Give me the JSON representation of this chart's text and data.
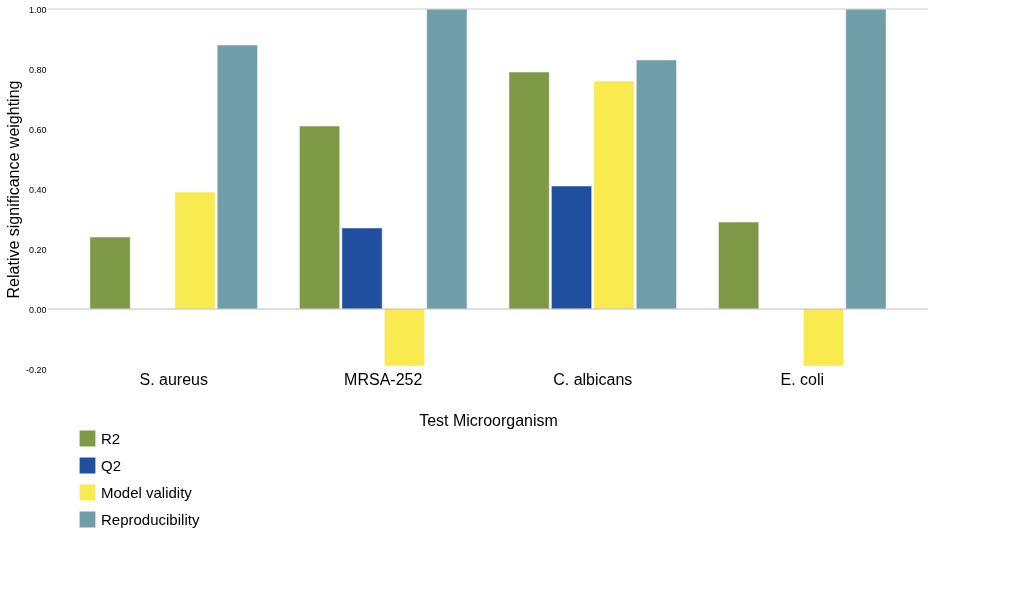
{
  "chart_data": {
    "type": "bar",
    "xlabel": "Test Microorganism",
    "ylabel": "Relative significance weighting",
    "categories": [
      "S. aureus",
      "MRSA-252",
      "C. albicans",
      "E. coli"
    ],
    "series": [
      {
        "name": "R2",
        "color": "#7f9a47",
        "values": [
          0.24,
          0.61,
          0.79,
          0.29
        ]
      },
      {
        "name": "Q2",
        "color": "#1f4f9e",
        "values": [
          null,
          0.27,
          0.41,
          null
        ]
      },
      {
        "name": "Model validity",
        "color": "#f8ea4f",
        "values": [
          0.39,
          -0.19,
          0.76,
          -0.19
        ]
      },
      {
        "name": "Reproducibility",
        "color": "#6f9da8",
        "values": [
          0.88,
          1.0,
          0.83,
          1.0
        ]
      }
    ],
    "ylim": [
      -0.2,
      1.0
    ],
    "yticks": [
      {
        "value": -0.2,
        "label": "-0.20"
      },
      {
        "value": 0,
        "label": "0.00"
      },
      {
        "value": 0.2,
        "label": "0.20"
      },
      {
        "value": 0.4,
        "label": "0.40"
      },
      {
        "value": 0.6,
        "label": "0.60"
      },
      {
        "value": 0.8,
        "label": "0.80"
      },
      {
        "value": 1.0,
        "label": "1.00"
      }
    ],
    "ref_lines": [
      {
        "axis": "y",
        "value": 0,
        "label": null,
        "color": "#bbbbbb"
      }
    ],
    "grid": false,
    "legend": "bottom left"
  }
}
